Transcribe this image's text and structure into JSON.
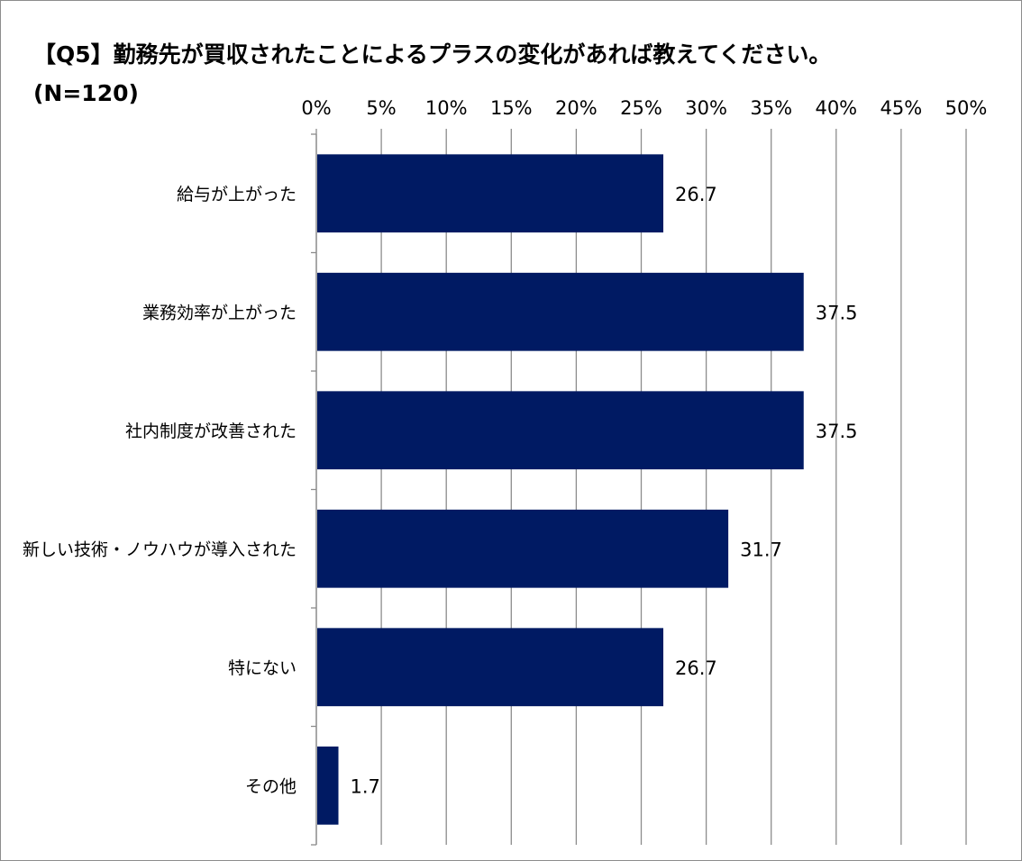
{
  "chart_data": {
    "type": "bar",
    "orientation": "horizontal",
    "title": "【Q5】勤務先が買収されたことによるプラスの変化があれば教えてください。",
    "subtitle": "(N=120)",
    "categories": [
      "給与が上がった",
      "業務効率が上がった",
      "社内制度が改善された",
      "新しい技術・ノウハウが導入された",
      "特にない",
      "その他"
    ],
    "values": [
      26.7,
      37.5,
      37.5,
      31.7,
      26.7,
      1.7
    ],
    "value_labels": [
      "26.7",
      "37.5",
      "37.5",
      "31.7",
      "26.7",
      "1.7"
    ],
    "xlim": [
      0,
      50
    ],
    "xticks": [
      0,
      5,
      10,
      15,
      20,
      25,
      30,
      35,
      40,
      45,
      50
    ],
    "xtick_labels": [
      "0%",
      "5%",
      "10%",
      "15%",
      "20%",
      "25%",
      "30%",
      "35%",
      "40%",
      "45%",
      "50%"
    ],
    "axis_position": "top",
    "grid": true,
    "legend": "none",
    "bar_color": "#001A63",
    "grid_color": "#8C8C8C"
  }
}
